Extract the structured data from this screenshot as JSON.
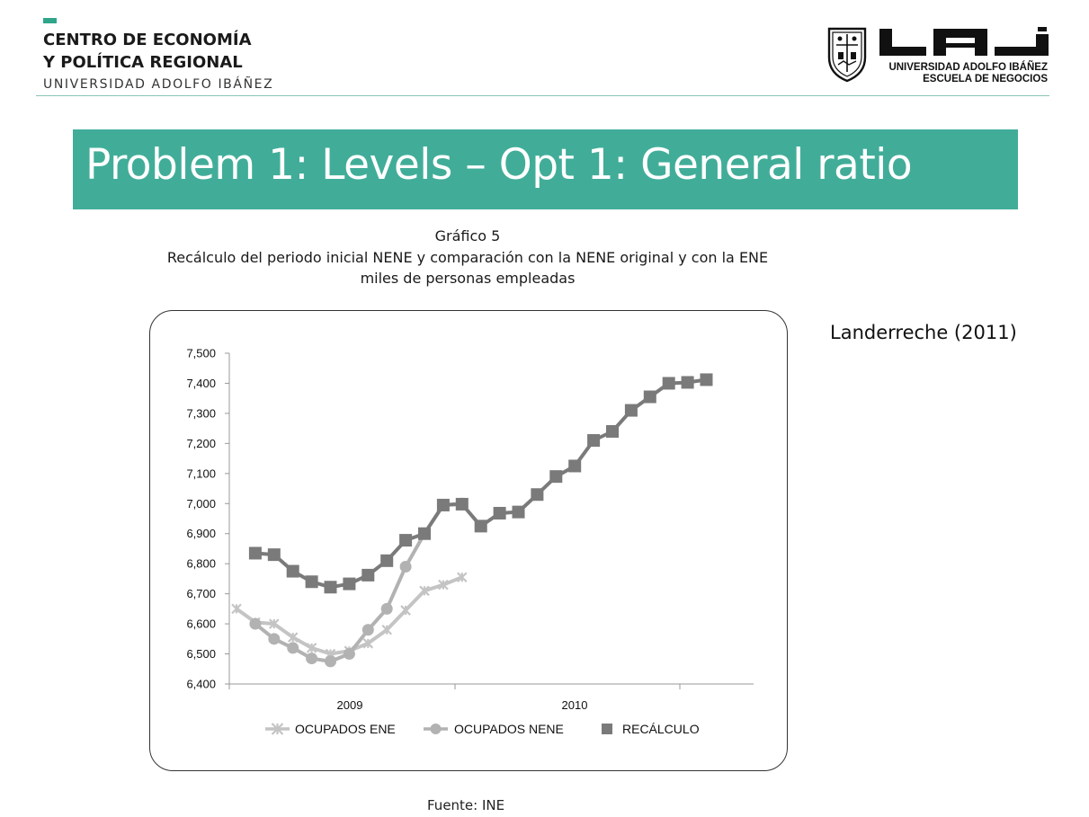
{
  "header": {
    "center_line1": "CENTRO DE ECONOMÍA",
    "center_line2": "Y POLÍTICA REGIONAL",
    "center_sub": "UNIVERSIDAD ADOLFO IBÁÑEZ",
    "uai_line1": "UNIVERSIDAD ADOLFO IBÁÑEZ",
    "uai_line2": "ESCUELA DE NEGOCIOS",
    "uai_logo_text": "UAI",
    "accent_color": "#41ad99"
  },
  "slide": {
    "title": "Problem 1: Levels – Opt 1: General ratio",
    "citation": "Landerreche (2011)"
  },
  "figure": {
    "number": "Gráfico 5",
    "title": "Recálculo del periodo inicial NENE y comparación con la NENE original y con la ENE",
    "unit": "miles de personas empleadas",
    "source": "Fuente: INE"
  },
  "chart_data": {
    "type": "line",
    "ylim": [
      6400,
      7500
    ],
    "yticks": [
      "6,400",
      "6,500",
      "6,600",
      "6,700",
      "6,800",
      "6,900",
      "7,000",
      "7,100",
      "7,200",
      "7,300",
      "7,400",
      "7,500"
    ],
    "x_tick_labels": [
      "2009",
      "2010"
    ],
    "x_count": 26,
    "grid": false,
    "legend_position": "bottom",
    "series": [
      {
        "name": "OCUPADOS ENE",
        "marker": "x",
        "color": "#c4c4c4",
        "values": [
          6650,
          6605,
          6600,
          6555,
          6520,
          6500,
          6510,
          6535,
          6580,
          6645,
          6710,
          6730,
          6755
        ]
      },
      {
        "name": "OCUPADOS NENE",
        "marker": "circle",
        "color": "#b2b2b2",
        "values": [
          null,
          6600,
          6550,
          6520,
          6485,
          6475,
          6500,
          6580,
          6650,
          6790,
          6900,
          6995,
          7000
        ]
      },
      {
        "name": "RECÁLCULO",
        "marker": "square",
        "color": "#7a7a7a",
        "values": [
          null,
          6835,
          6830,
          6775,
          6740,
          6722,
          6733,
          6762,
          6810,
          6878,
          6900,
          6995,
          6998,
          6925,
          6968,
          6972,
          7030,
          7090,
          7125,
          7210,
          7240,
          7310,
          7355,
          7400,
          7403,
          7412
        ]
      }
    ]
  }
}
